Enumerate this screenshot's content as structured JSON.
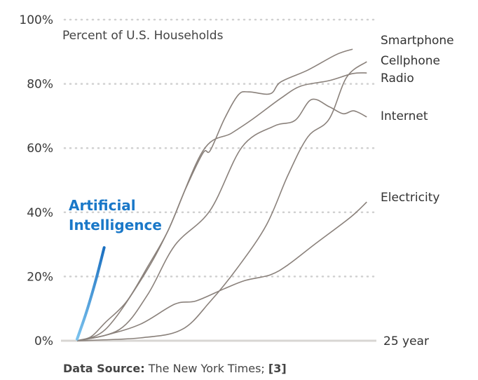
{
  "chart_data": {
    "type": "line",
    "subtitle": "Percent of U.S. Households",
    "xlabel_end": "25 year",
    "xlim": [
      0,
      25
    ],
    "ylim": [
      0,
      100
    ],
    "y_ticks": [
      0,
      20,
      40,
      60,
      80,
      100
    ],
    "y_tick_labels": [
      "0%",
      "20%",
      "40%",
      "60%",
      "80%",
      "100%"
    ],
    "grid": "horizontal dotted",
    "colors": {
      "series": "#8a817b",
      "ai_start": "#7cc3ee",
      "ai_end": "#1a6fc0",
      "ai_label": "#1a78c8",
      "grid": "#d0d0d0",
      "axis": "#d8d6d3"
    },
    "series": [
      {
        "name": "Smartphone",
        "x": [
          0,
          1.2,
          2.4,
          4.2,
          6.0,
          7.7,
          9.2,
          10.7,
          11.3,
          12.5,
          13.7,
          14.6,
          16.4,
          17.3,
          19.6,
          22.0,
          23.4
        ],
        "y": [
          0,
          1.3,
          5.7,
          12.2,
          23.1,
          34.1,
          47.2,
          58.5,
          59.2,
          69.0,
          76.6,
          77.5,
          76.9,
          80.6,
          84.3,
          89.1,
          90.8
        ]
      },
      {
        "name": "Cellphone",
        "x": [
          0,
          5.4,
          8.9,
          11.3,
          13.7,
          16.1,
          17.9,
          19.6,
          21.4,
          22.9,
          24.6
        ],
        "y": [
          0,
          0.9,
          3.5,
          12.2,
          23.1,
          36.2,
          51.5,
          63.5,
          69.0,
          82.1,
          86.9
        ]
      },
      {
        "name": "Radio",
        "x": [
          0,
          2.4,
          5.4,
          7.7,
          10.7,
          13.1,
          14.9,
          17.3,
          19.0,
          21.4,
          23.4,
          24.6
        ],
        "y": [
          0,
          3.5,
          18.8,
          34.1,
          59.2,
          64.6,
          69.0,
          75.5,
          79.3,
          81.0,
          83.2,
          83.4
        ]
      },
      {
        "name": "Internet",
        "x": [
          0,
          3.6,
          6.0,
          8.3,
          11.3,
          14.0,
          16.7,
          18.5,
          19.9,
          21.4,
          22.6,
          23.5,
          24.6
        ],
        "y": [
          0,
          3.5,
          14.4,
          29.7,
          40.6,
          60.3,
          66.8,
          68.6,
          75.1,
          72.9,
          70.7,
          71.6,
          69.7
        ]
      },
      {
        "name": "Electricity",
        "x": [
          0,
          2.4,
          5.4,
          8.3,
          10.1,
          12.5,
          14.3,
          16.4,
          17.9,
          20.2,
          23.2,
          24.6
        ],
        "y": [
          0,
          1.7,
          5.2,
          11.4,
          12.4,
          16.2,
          18.8,
          20.5,
          23.6,
          30.1,
          38.4,
          43.2
        ]
      }
    ],
    "highlight": {
      "name_line1": "Artificial",
      "name_line2": "Intelligence",
      "x": [
        0,
        0.8,
        1.6,
        2.3
      ],
      "y": [
        0.5,
        9,
        19,
        29
      ]
    },
    "footer": {
      "bold": "Data Source:",
      "text": "The New York Times;",
      "ref": "[3]"
    }
  }
}
